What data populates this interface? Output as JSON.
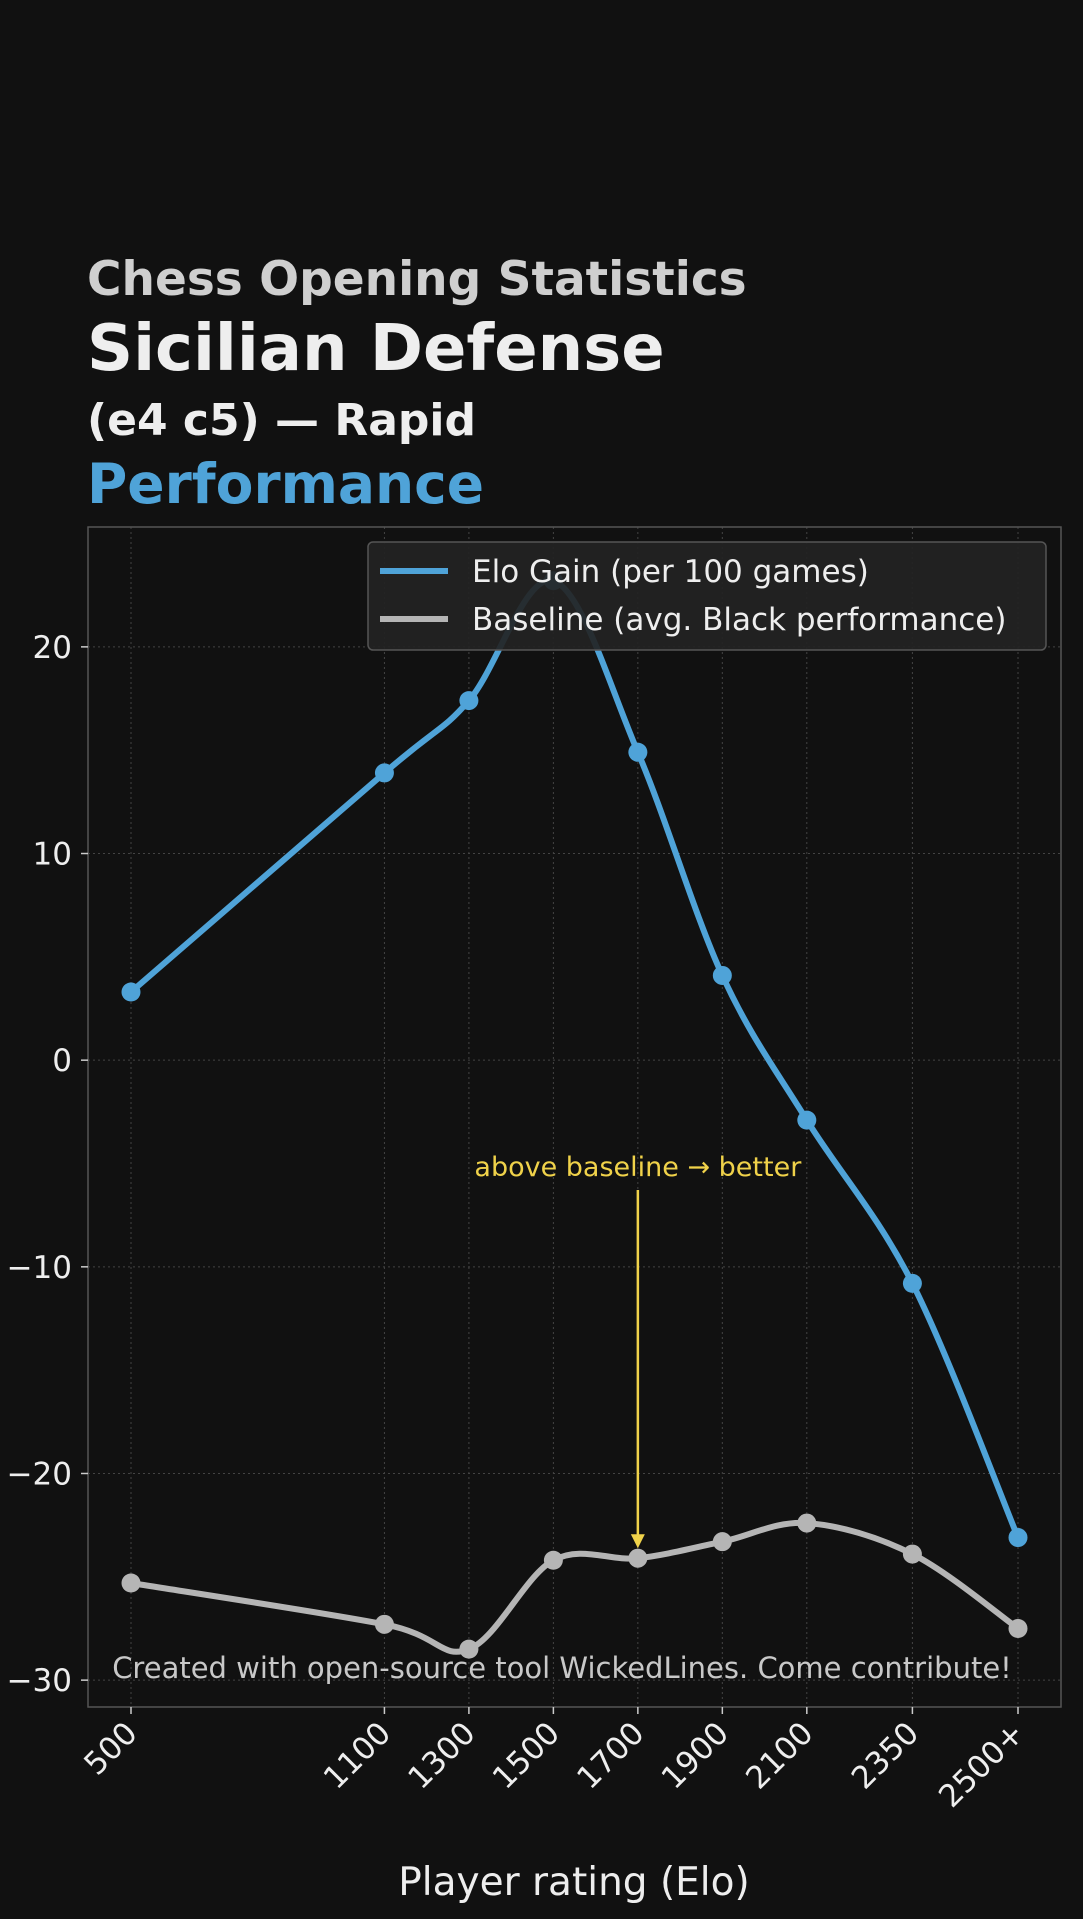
{
  "header": {
    "line1": "Chess Opening Statistics",
    "line2": "Sicilian Defense",
    "line3": "(e4 c5) — Rapid",
    "line4": "Performance"
  },
  "colors": {
    "background": "#111111",
    "elo_series": "#4fa3d8",
    "baseline_series": "#b5b5b5",
    "annotation": "#f0d24a",
    "grid": "#444444",
    "text": "#eeeeee"
  },
  "chart_data": {
    "type": "line",
    "xlabel": "Player rating (Elo)",
    "ylabel": "",
    "x": [
      500,
      1100,
      1300,
      1500,
      1700,
      1900,
      2100,
      2350,
      2600
    ],
    "x_tick_labels": [
      "500",
      "1100",
      "1300",
      "1500",
      "1700",
      "1900",
      "2100",
      "2350",
      "2500+"
    ],
    "ylim": [
      -31.3,
      25.8
    ],
    "y_ticks": [
      20,
      10,
      0,
      -10,
      -20,
      -30
    ],
    "y_tick_labels": [
      "20",
      "10",
      "0",
      "−10",
      "−20",
      "−30"
    ],
    "grid": true,
    "legend_position": "top-right",
    "series": [
      {
        "name": "Elo Gain (per 100 games)",
        "values": [
          3.3,
          13.9,
          17.4,
          23.2,
          14.9,
          4.1,
          -2.9,
          -10.8,
          -23.1
        ]
      },
      {
        "name": "Baseline (avg. Black performance)",
        "values": [
          -25.3,
          -27.3,
          -28.5,
          -24.2,
          -24.1,
          -23.3,
          -22.4,
          -23.9,
          -27.5
        ]
      }
    ],
    "annotation": {
      "text": "above baseline → better",
      "target_x": 1700,
      "target_y": -24.1
    },
    "footer": "Created with open-source tool WickedLines. Come contribute!"
  }
}
